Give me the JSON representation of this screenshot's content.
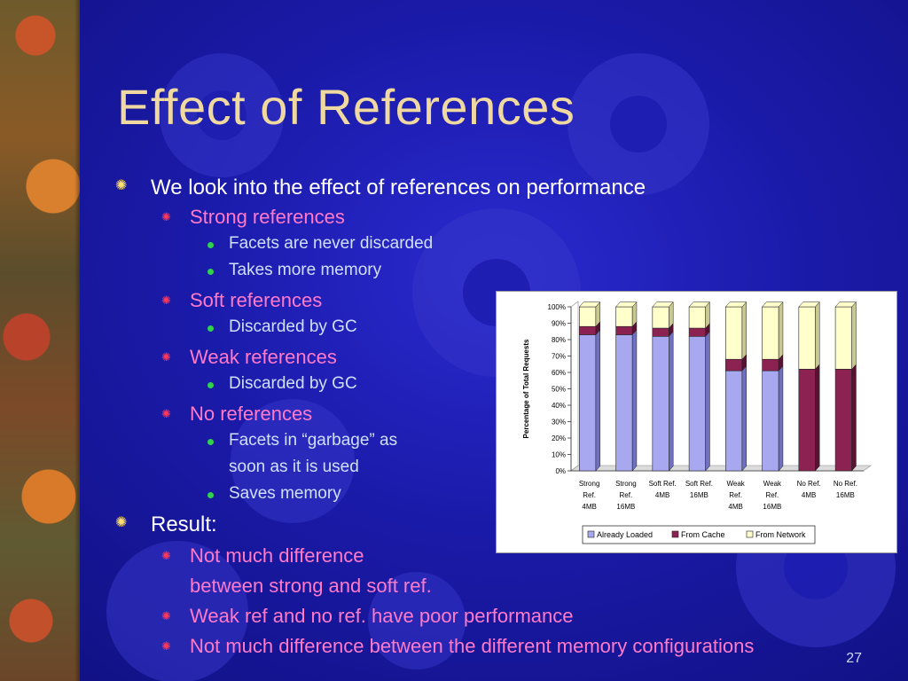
{
  "slide": {
    "title": "Effect of References",
    "page_number": "27"
  },
  "bullets": {
    "b1": "We look into the effect of references on performance",
    "b1_1": "Strong references",
    "b1_1_1": "Facets are never discarded",
    "b1_1_2": "Takes more memory",
    "b1_2": "Soft references",
    "b1_2_1": "Discarded by GC",
    "b1_3": "Weak references",
    "b1_3_1": "Discarded by GC",
    "b1_4": "No references",
    "b1_4_1a": "Facets in “garbage” as",
    "b1_4_1b": "soon as it is used",
    "b1_4_2": "Saves memory",
    "b2": "Result:",
    "b2_1a": "Not much difference",
    "b2_1b": "between strong and soft ref.",
    "b2_2": "Weak ref and no ref. have poor performance",
    "b2_3": "Not much difference between the different memory configurations"
  },
  "colors": {
    "already_loaded": "#a8a8f0",
    "from_cache": "#8b2252",
    "from_network": "#ffffcc"
  },
  "chart_data": {
    "type": "bar",
    "stacked": true,
    "percent": true,
    "ylabel": "Percentage of Total Requests",
    "ylim": [
      0,
      100
    ],
    "yticks": [
      "0%",
      "10%",
      "20%",
      "30%",
      "40%",
      "50%",
      "60%",
      "70%",
      "80%",
      "90%",
      "100%"
    ],
    "categories": [
      [
        "Strong",
        "Ref.",
        "4MB"
      ],
      [
        "Strong",
        "Ref.",
        "16MB"
      ],
      [
        "Soft Ref.",
        "4MB"
      ],
      [
        "Soft Ref.",
        "16MB"
      ],
      [
        "Weak",
        "Ref.",
        "4MB"
      ],
      [
        "Weak",
        "Ref.",
        "16MB"
      ],
      [
        "No Ref.",
        "4MB"
      ],
      [
        "No Ref.",
        "16MB"
      ]
    ],
    "series": [
      {
        "name": "Already Loaded",
        "values": [
          83,
          83,
          82,
          82,
          61,
          61,
          0,
          0
        ]
      },
      {
        "name": "From Cache",
        "values": [
          5,
          5,
          5,
          5,
          7,
          7,
          62,
          62
        ]
      },
      {
        "name": "From Network",
        "values": [
          12,
          12,
          13,
          13,
          32,
          32,
          38,
          38
        ]
      }
    ],
    "legend_position": "bottom"
  }
}
